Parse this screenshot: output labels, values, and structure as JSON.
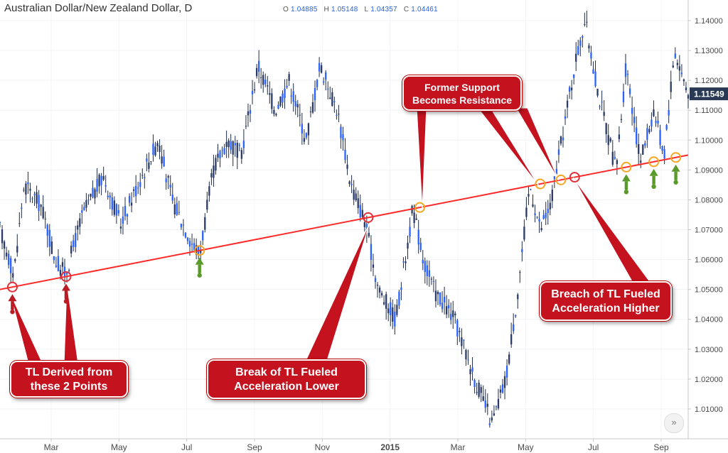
{
  "header": {
    "title": "Australian Dollar/New Zealand Dollar, D",
    "ohlc": [
      {
        "k": "O",
        "v": "1.04885"
      },
      {
        "k": "H",
        "v": "1.05148"
      },
      {
        "k": "L",
        "v": "1.04357"
      },
      {
        "k": "C",
        "v": "1.04461"
      }
    ]
  },
  "nav_button": "»",
  "colors": {
    "candle": "#2962ff",
    "wick": "#1e2a44",
    "trendline": "#ff2a2a",
    "callout": "#c4121f",
    "arrow_red": "#b81d24",
    "arrow_green": "#5a9a2a",
    "circle_orange": "#f5a623",
    "price_tag": "#2a3a55"
  },
  "callouts": [
    {
      "id": "tl-derived",
      "lines": [
        "TL Derived from",
        "these 2 Points"
      ]
    },
    {
      "id": "break-lower",
      "lines": [
        "Break of TL Fueled",
        "Acceleration Lower"
      ]
    },
    {
      "id": "former-support",
      "lines": [
        "Former Support",
        "Becomes Resistance"
      ]
    },
    {
      "id": "breach-higher",
      "lines": [
        "Breach of TL Fueled",
        "Acceleration Higher"
      ]
    }
  ],
  "chart_data": {
    "type": "candlestick",
    "title": "Australian Dollar/New Zealand Dollar, D",
    "x_ticks": [
      "Mar",
      "May",
      "Jul",
      "Sep",
      "Nov",
      "2015",
      "Mar",
      "May",
      "Jul",
      "Sep"
    ],
    "y_ticks": [
      "1.01000",
      "1.02000",
      "1.03000",
      "1.04000",
      "1.05000",
      "1.06000",
      "1.07000",
      "1.08000",
      "1.09000",
      "1.10000",
      "1.11000",
      "1.12000",
      "1.13000",
      "1.14000"
    ],
    "ylim": [
      1.0,
      1.145
    ],
    "last_price": "1.11549",
    "price_path": [
      [
        0,
        1.07
      ],
      [
        0.02,
        1.055
      ],
      [
        0.035,
        1.085
      ],
      [
        0.06,
        1.078
      ],
      [
        0.08,
        1.06
      ],
      [
        0.095,
        1.055
      ],
      [
        0.12,
        1.075
      ],
      [
        0.15,
        1.088
      ],
      [
        0.175,
        1.072
      ],
      [
        0.2,
        1.085
      ],
      [
        0.23,
        1.1
      ],
      [
        0.25,
        1.08
      ],
      [
        0.28,
        1.065
      ],
      [
        0.29,
        1.062
      ],
      [
        0.31,
        1.09
      ],
      [
        0.33,
        1.1
      ],
      [
        0.35,
        1.095
      ],
      [
        0.375,
        1.125
      ],
      [
        0.4,
        1.11
      ],
      [
        0.42,
        1.12
      ],
      [
        0.445,
        1.1
      ],
      [
        0.465,
        1.125
      ],
      [
        0.49,
        1.11
      ],
      [
        0.51,
        1.085
      ],
      [
        0.53,
        1.073
      ],
      [
        0.55,
        1.05
      ],
      [
        0.575,
        1.04
      ],
      [
        0.6,
        1.077
      ],
      [
        0.615,
        1.06
      ],
      [
        0.63,
        1.05
      ],
      [
        0.66,
        1.04
      ],
      [
        0.69,
        1.02
      ],
      [
        0.715,
        1.005
      ],
      [
        0.735,
        1.02
      ],
      [
        0.75,
        1.045
      ],
      [
        0.77,
        1.085
      ],
      [
        0.785,
        1.07
      ],
      [
        0.8,
        1.078
      ],
      [
        0.82,
        1.105
      ],
      [
        0.835,
        1.125
      ],
      [
        0.85,
        1.14
      ],
      [
        0.87,
        1.115
      ],
      [
        0.895,
        1.09
      ],
      [
        0.91,
        1.125
      ],
      [
        0.93,
        1.093
      ],
      [
        0.95,
        1.11
      ],
      [
        0.965,
        1.095
      ],
      [
        0.98,
        1.13
      ],
      [
        1.0,
        1.1155
      ]
    ],
    "trendline": {
      "x": [
        0.0,
        1.0
      ],
      "y": [
        1.05,
        1.095
      ]
    },
    "circles": [
      {
        "x": 0.018,
        "color": "red"
      },
      {
        "x": 0.096,
        "color": "red"
      },
      {
        "x": 0.29,
        "color": "orange"
      },
      {
        "x": 0.535,
        "color": "red"
      },
      {
        "x": 0.61,
        "color": "orange"
      },
      {
        "x": 0.785,
        "color": "orange"
      },
      {
        "x": 0.815,
        "color": "orange"
      },
      {
        "x": 0.835,
        "color": "red"
      },
      {
        "x": 0.91,
        "color": "orange"
      },
      {
        "x": 0.95,
        "color": "orange"
      },
      {
        "x": 0.982,
        "color": "orange"
      }
    ],
    "up_arrows": [
      {
        "x": 0.018,
        "color": "red"
      },
      {
        "x": 0.096,
        "color": "red"
      },
      {
        "x": 0.29,
        "color": "green"
      },
      {
        "x": 0.91,
        "color": "green"
      },
      {
        "x": 0.95,
        "color": "green"
      },
      {
        "x": 0.982,
        "color": "green"
      }
    ]
  }
}
